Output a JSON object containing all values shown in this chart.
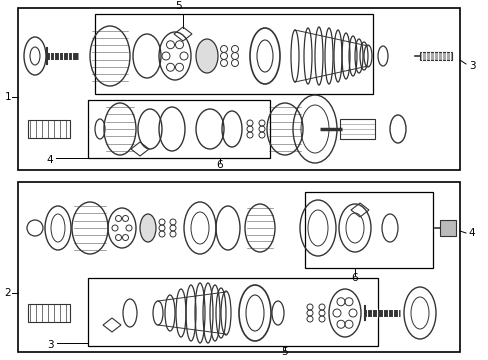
{
  "bg_color": "#ffffff",
  "lc": "#000000",
  "pc": "#333333",
  "gc": "#888888",
  "figsize": [
    4.89,
    3.6
  ],
  "dpi": 100
}
